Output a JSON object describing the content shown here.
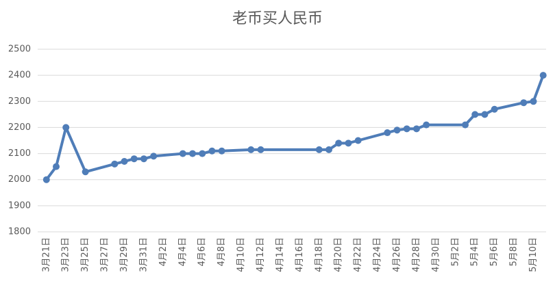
{
  "chart_data": {
    "type": "line",
    "title": "老币买人民币",
    "x": [
      "3月21日",
      "3月22日",
      "3月23日",
      "3月25日",
      "3月28日",
      "3月29日",
      "3月30日",
      "3月31日",
      "4月1日",
      "4月4日",
      "4月5日",
      "4月6日",
      "4月7日",
      "4月8日",
      "4月11日",
      "4月12日",
      "4月18日",
      "4月19日",
      "4月20日",
      "4月21日",
      "4月22日",
      "4月25日",
      "4月26日",
      "4月27日",
      "4月28日",
      "4月29日",
      "5月3日",
      "5月4日",
      "5月5日",
      "5月6日",
      "5月9日",
      "5月10日",
      "5月11日"
    ],
    "values": [
      2000,
      2050,
      2200,
      2030,
      2060,
      2070,
      2080,
      2080,
      2090,
      2100,
      2100,
      2100,
      2110,
      2110,
      2115,
      2115,
      2115,
      2115,
      2140,
      2140,
      2150,
      2180,
      2190,
      2195,
      2195,
      2210,
      2210,
      2250,
      2250,
      2270,
      2295,
      2300,
      2400
    ],
    "color": "#4f7db8",
    "xlim": [
      "3月21日",
      "5月11日"
    ],
    "xticks": [
      "3月21日",
      "3月23日",
      "3月25日",
      "3月27日",
      "3月29日",
      "3月31日",
      "4月2日",
      "4月4日",
      "4月6日",
      "4月8日",
      "4月10日",
      "4月12日",
      "4月14日",
      "4月16日",
      "4月18日",
      "4月20日",
      "4月22日",
      "4月24日",
      "4月26日",
      "4月28日",
      "4月30日",
      "5月2日",
      "5月4日",
      "5月6日",
      "5月8日",
      "5月10日"
    ],
    "ylim": [
      1800,
      2500
    ],
    "yticks": [
      1800,
      1900,
      2000,
      2100,
      2200,
      2300,
      2400,
      2500
    ],
    "grid": true
  }
}
